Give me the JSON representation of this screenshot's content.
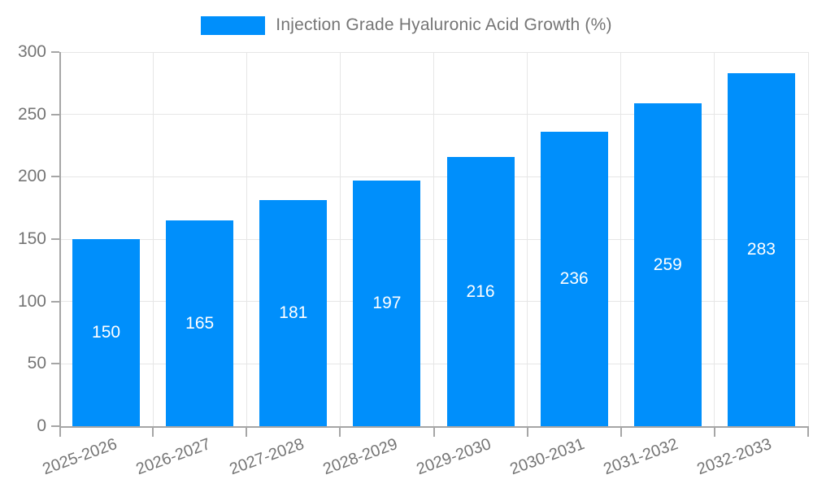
{
  "legend": {
    "label": "Injection Grade Hyaluronic Acid Growth (%)"
  },
  "colors": {
    "bar": "#008FFB",
    "axis": "#a6a6a6",
    "grid": "#e6e6e6",
    "tick_text": "#757575",
    "value_label": "#ffffff"
  },
  "chart_data": {
    "type": "bar",
    "title": "Injection Grade Hyaluronic Acid Growth (%)",
    "categories": [
      "2025-2026",
      "2026-2027",
      "2027-2028",
      "2028-2029",
      "2029-2030",
      "2030-2031",
      "2031-2032",
      "2032-2033"
    ],
    "values": [
      150,
      165,
      181,
      197,
      216,
      236,
      259,
      283
    ],
    "xlabel": "",
    "ylabel": "",
    "ylim": [
      0,
      300
    ],
    "yticks": [
      0,
      50,
      100,
      150,
      200,
      250,
      300
    ],
    "grid": true,
    "legend_position": "top",
    "value_labels": "inside-center"
  }
}
